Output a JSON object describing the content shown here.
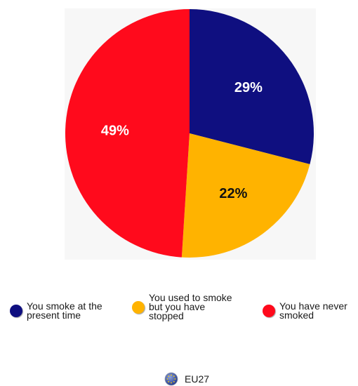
{
  "chart_data": {
    "type": "pie",
    "slices": [
      {
        "label": "You smoke at the present time",
        "value": 29,
        "value_label": "29%",
        "color": "#0f0f80"
      },
      {
        "label": "You used to smoke but you have stopped",
        "value": 22,
        "value_label": "22%",
        "color": "#ffb300"
      },
      {
        "label": "You have never smoked",
        "value": 49,
        "value_label": "49%",
        "color": "#ff0a1c"
      }
    ],
    "label_colors": [
      "#ffffff",
      "#111111",
      "#ffffff"
    ],
    "legend_placement": "bottom"
  },
  "legend": {
    "items": [
      {
        "text": "You smoke at the\npresent time",
        "color": "#0f0f80"
      },
      {
        "text": "You used to smoke\nbut you have\nstopped",
        "color": "#ffb300"
      },
      {
        "text": "You have never\nsmoked",
        "color": "#ff0a1c"
      }
    ]
  },
  "footer": {
    "icon": "eu-flag-globe-icon",
    "label": "EU27"
  }
}
